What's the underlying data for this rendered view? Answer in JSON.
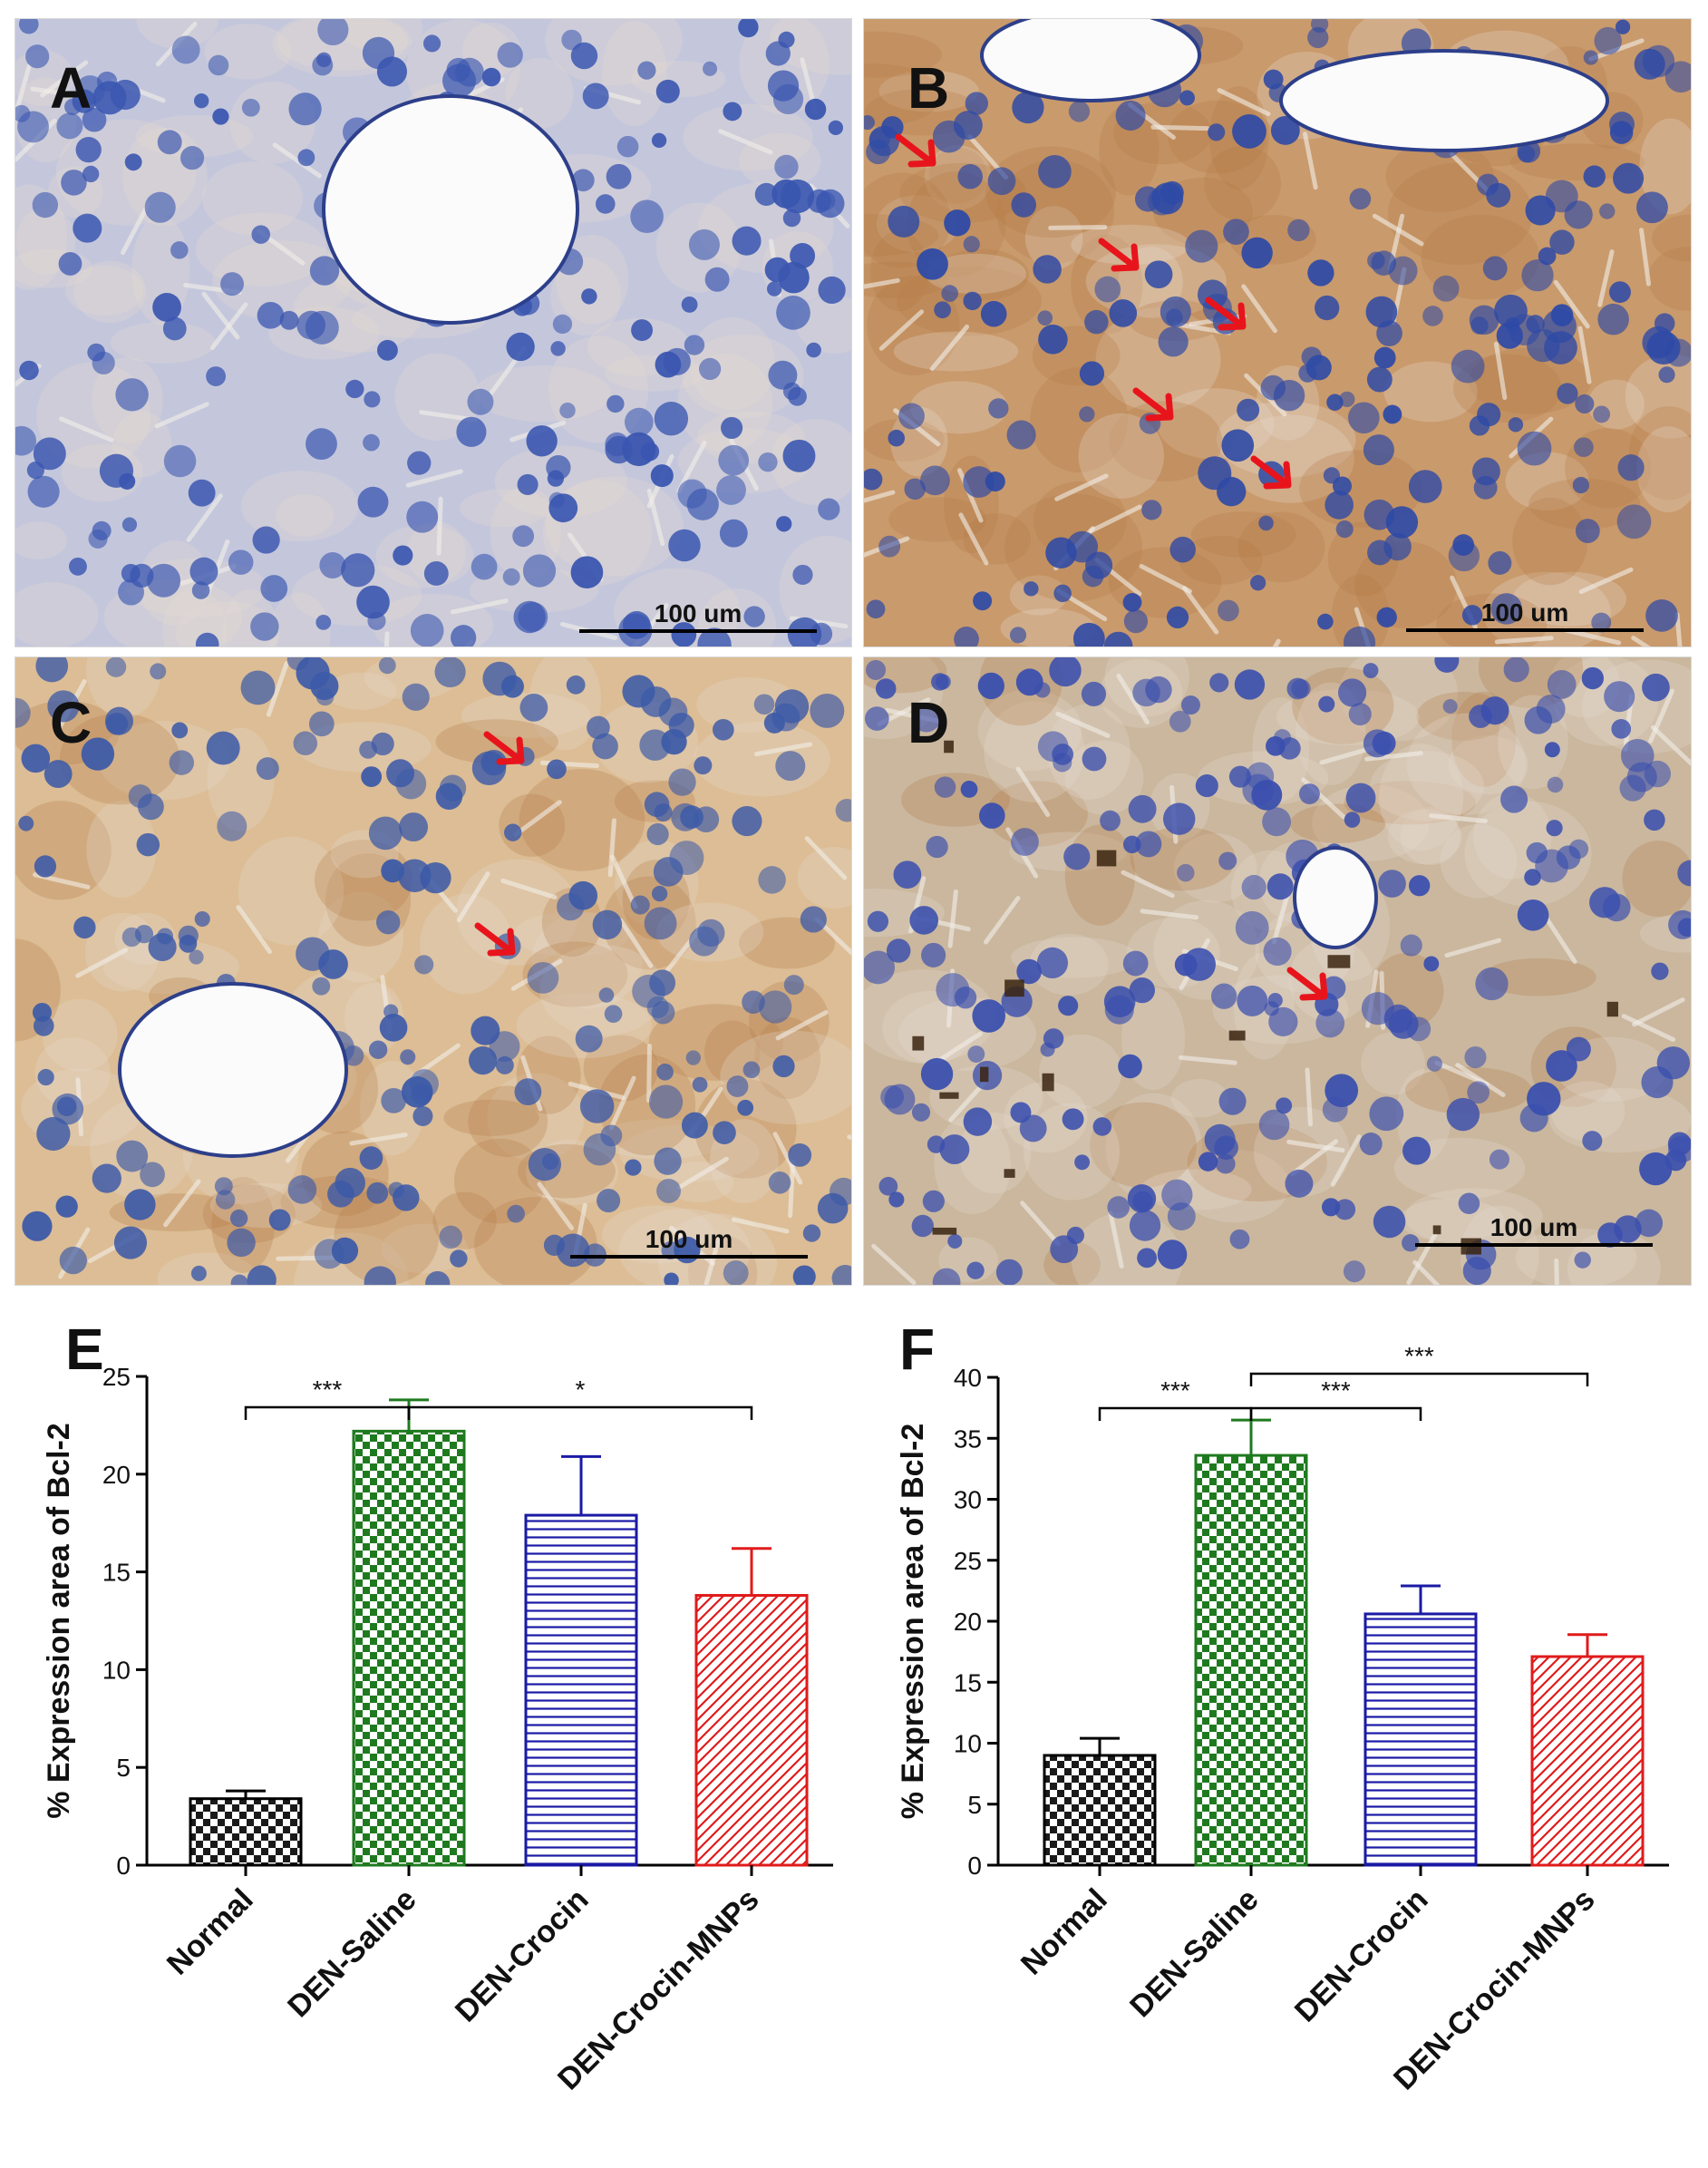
{
  "panels": [
    {
      "letter": "A",
      "scale_label": "100 um",
      "bg": "#c4c7dc",
      "nucleus": "#3a56b0",
      "brown": 0.0
    },
    {
      "letter": "B",
      "scale_label": "100 um",
      "bg": "#c99a6c",
      "nucleus": "#2e4aa6",
      "brown": 0.7
    },
    {
      "letter": "C",
      "scale_label": "100 um",
      "bg": "#dcbd95",
      "nucleus": "#3c5aa8",
      "brown": 0.45
    },
    {
      "letter": "D",
      "scale_label": "100 um",
      "bg": "#cab79e",
      "nucleus": "#3a4fae",
      "brown": 0.25
    }
  ],
  "chart_data": [
    {
      "panel_letter": "E",
      "type": "bar",
      "categories": [
        "Normal",
        "DEN-Saline",
        "DEN-Crocin",
        "DEN-Crocin-MNPs"
      ],
      "values": [
        3.4,
        22.2,
        17.9,
        13.8
      ],
      "errors": [
        0.4,
        1.6,
        3.0,
        2.4
      ],
      "ylabel": "% Expression area of Bcl-2",
      "ylim": [
        0,
        25
      ],
      "yticks": [
        "0",
        "5",
        "10",
        "15",
        "20",
        "25"
      ],
      "patterns": [
        "checker-black",
        "checker-green",
        "hlines-blue",
        "diag-red"
      ],
      "colors": [
        "#000000",
        "#1f7a1f",
        "#1a1aa6",
        "#e01b1b"
      ],
      "significance": [
        {
          "from": 0,
          "to": 1,
          "label": "***"
        },
        {
          "from": 1,
          "to": 3,
          "label": "*"
        }
      ]
    },
    {
      "panel_letter": "F",
      "type": "bar",
      "categories": [
        "Normal",
        "DEN-Saline",
        "DEN-Crocin",
        "DEN-Crocin-MNPs"
      ],
      "values": [
        9.0,
        33.6,
        20.6,
        17.1
      ],
      "errors": [
        1.4,
        2.9,
        2.3,
        1.8
      ],
      "ylabel": "% Expression area of Bcl-2",
      "ylim": [
        0,
        40
      ],
      "yticks": [
        "0",
        "5",
        "10",
        "15",
        "20",
        "25",
        "30",
        "35",
        "40"
      ],
      "patterns": [
        "checker-black",
        "checker-green",
        "hlines-blue",
        "diag-red"
      ],
      "colors": [
        "#000000",
        "#1f7a1f",
        "#1a1aa6",
        "#e01b1b"
      ],
      "significance": [
        {
          "from": 0,
          "to": 1,
          "label": "***"
        },
        {
          "from": 1,
          "to": 2,
          "label": "***"
        },
        {
          "from": 1,
          "to": 3,
          "label": "***"
        }
      ]
    }
  ]
}
